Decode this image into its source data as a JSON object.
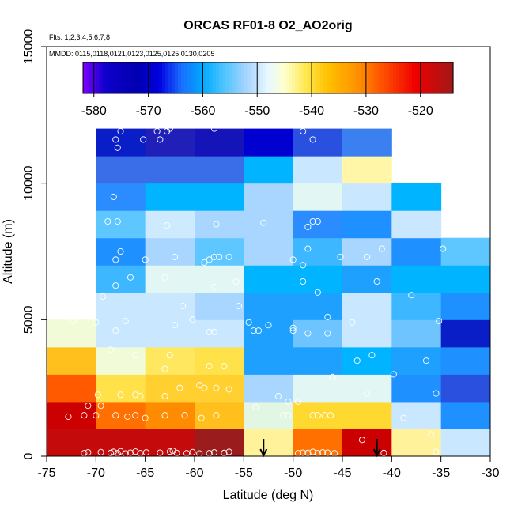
{
  "chart_data": {
    "type": "heatmap",
    "title": "ORCAS RF01-8 O2_AO2orig",
    "flights_note": "Flts: 1,2,3,4,5,6,7,8",
    "dates_note": "MMDD: 0115,0118,0121,0123,0125,0125,0130,0205",
    "xlabel": "Latitude (deg N)",
    "ylabel": "Altitude (m)",
    "xlim": [
      -75,
      -30
    ],
    "ylim": [
      0,
      15000
    ],
    "xticks": [
      -75,
      -70,
      -65,
      -60,
      -55,
      -50,
      -45,
      -40,
      -35,
      -30
    ],
    "yticks": [
      0,
      5000,
      10000,
      15000
    ],
    "colorbar": {
      "range": [
        -582,
        -514
      ],
      "ticks": [
        -580,
        -570,
        -560,
        -550,
        -540,
        -530,
        -520
      ],
      "stops": [
        [
          -582,
          "#8000ff"
        ],
        [
          -578,
          "#1000cc"
        ],
        [
          -572,
          "#0000b0"
        ],
        [
          -568,
          "#0000e0"
        ],
        [
          -564,
          "#1a6cff"
        ],
        [
          -560,
          "#00aaff"
        ],
        [
          -556,
          "#4fc4ff"
        ],
        [
          -552,
          "#a6d4ff"
        ],
        [
          -548,
          "#e8f8ff"
        ],
        [
          -545,
          "#ffffd0"
        ],
        [
          -541,
          "#ffe84d"
        ],
        [
          -537,
          "#ffc000"
        ],
        [
          -531,
          "#ff8c00"
        ],
        [
          -527,
          "#ff5000"
        ],
        [
          -521,
          "#f00000"
        ],
        [
          -514,
          "#a01818"
        ]
      ]
    },
    "cell_width_deg": 5,
    "cell_height_m": 1000,
    "cells": [
      {
        "x": -75,
        "y": 0,
        "color": "#c40a0a"
      },
      {
        "x": -75,
        "y": 1000,
        "color": "#cc0000"
      },
      {
        "x": -75,
        "y": 2000,
        "color": "#ff5a00"
      },
      {
        "x": -75,
        "y": 3000,
        "color": "#ffc01e"
      },
      {
        "x": -75,
        "y": 4000,
        "color": "#f2fbd8"
      },
      {
        "x": -70,
        "y": 0,
        "color": "#c40a0a"
      },
      {
        "x": -70,
        "y": 1000,
        "color": "#ff7000"
      },
      {
        "x": -70,
        "y": 2000,
        "color": "#ffe14a"
      },
      {
        "x": -70,
        "y": 3000,
        "color": "#f2fbd8"
      },
      {
        "x": -70,
        "y": 4000,
        "color": "#c9e8ff"
      },
      {
        "x": -70,
        "y": 5000,
        "color": "#c9e8ff"
      },
      {
        "x": -70,
        "y": 6000,
        "color": "#3db7ff"
      },
      {
        "x": -70,
        "y": 7000,
        "color": "#1e90ff"
      },
      {
        "x": -70,
        "y": 8000,
        "color": "#5ec7ff"
      },
      {
        "x": -70,
        "y": 9000,
        "color": "#2b8cff"
      },
      {
        "x": -70,
        "y": 10000,
        "color": "#3a6ee8"
      },
      {
        "x": -70,
        "y": 11000,
        "color": "#0a1ec8"
      },
      {
        "x": -65,
        "y": 0,
        "color": "#c40a0a"
      },
      {
        "x": -65,
        "y": 1000,
        "color": "#ff8c00"
      },
      {
        "x": -65,
        "y": 2000,
        "color": "#ffd030"
      },
      {
        "x": -65,
        "y": 3000,
        "color": "#ffe760"
      },
      {
        "x": -65,
        "y": 4000,
        "color": "#c9e8ff"
      },
      {
        "x": -65,
        "y": 5000,
        "color": "#c9e8ff"
      },
      {
        "x": -65,
        "y": 6000,
        "color": "#e2f6f4"
      },
      {
        "x": -65,
        "y": 7000,
        "color": "#a9d6ff"
      },
      {
        "x": -65,
        "y": 8000,
        "color": "#cdeaff"
      },
      {
        "x": -65,
        "y": 9000,
        "color": "#00b4ff"
      },
      {
        "x": -65,
        "y": 10000,
        "color": "#3a6ee8"
      },
      {
        "x": -65,
        "y": 11000,
        "color": "#2020b8"
      },
      {
        "x": -60,
        "y": 0,
        "color": "#9a1c1c"
      },
      {
        "x": -60,
        "y": 1000,
        "color": "#ffc01e"
      },
      {
        "x": -60,
        "y": 2000,
        "color": "#ffd030"
      },
      {
        "x": -60,
        "y": 3000,
        "color": "#ffe14a"
      },
      {
        "x": -60,
        "y": 4000,
        "color": "#c9e8ff"
      },
      {
        "x": -60,
        "y": 5000,
        "color": "#a9d6ff"
      },
      {
        "x": -60,
        "y": 6000,
        "color": "#e2f6f4"
      },
      {
        "x": -60,
        "y": 7000,
        "color": "#5ec7ff"
      },
      {
        "x": -60,
        "y": 8000,
        "color": "#a9d6ff"
      },
      {
        "x": -60,
        "y": 9000,
        "color": "#00b4ff"
      },
      {
        "x": -60,
        "y": 10000,
        "color": "#3a6ee8"
      },
      {
        "x": -60,
        "y": 11000,
        "color": "#1414b8"
      },
      {
        "x": -55,
        "y": 0,
        "color": "#fff29a"
      },
      {
        "x": -55,
        "y": 1000,
        "color": "#e2f6e4"
      },
      {
        "x": -55,
        "y": 2000,
        "color": "#a9d6ff"
      },
      {
        "x": -55,
        "y": 3000,
        "color": "#1ea0ff"
      },
      {
        "x": -55,
        "y": 4000,
        "color": "#1ea0ff"
      },
      {
        "x": -55,
        "y": 5000,
        "color": "#1ea0ff"
      },
      {
        "x": -55,
        "y": 6000,
        "color": "#00b4ff"
      },
      {
        "x": -55,
        "y": 7000,
        "color": "#a9d6ff"
      },
      {
        "x": -55,
        "y": 8000,
        "color": "#a9d6ff"
      },
      {
        "x": -55,
        "y": 9000,
        "color": "#a9d6ff"
      },
      {
        "x": -55,
        "y": 10000,
        "color": "#00b4ff"
      },
      {
        "x": -55,
        "y": 11000,
        "color": "#0000d0"
      },
      {
        "x": -50,
        "y": 0,
        "color": "#ff7000"
      },
      {
        "x": -50,
        "y": 1000,
        "color": "#ffd830"
      },
      {
        "x": -50,
        "y": 2000,
        "color": "#e2f6f4"
      },
      {
        "x": -50,
        "y": 3000,
        "color": "#1ea0ff"
      },
      {
        "x": -50,
        "y": 4000,
        "color": "#6ec4ff"
      },
      {
        "x": -50,
        "y": 5000,
        "color": "#1ea0ff"
      },
      {
        "x": -50,
        "y": 6000,
        "color": "#00b4ff"
      },
      {
        "x": -50,
        "y": 7000,
        "color": "#3db7ff"
      },
      {
        "x": -50,
        "y": 8000,
        "color": "#2b8cff"
      },
      {
        "x": -50,
        "y": 9000,
        "color": "#e2f6f4"
      },
      {
        "x": -50,
        "y": 10000,
        "color": "#c9e8ff"
      },
      {
        "x": -50,
        "y": 11000,
        "color": "#2a50e0"
      },
      {
        "x": -45,
        "y": 0,
        "color": "#cc0000"
      },
      {
        "x": -45,
        "y": 1000,
        "color": "#ffd830"
      },
      {
        "x": -45,
        "y": 2000,
        "color": "#e2f6f4"
      },
      {
        "x": -45,
        "y": 3000,
        "color": "#00b4ff"
      },
      {
        "x": -45,
        "y": 4000,
        "color": "#c9e8ff"
      },
      {
        "x": -45,
        "y": 5000,
        "color": "#c9e8ff"
      },
      {
        "x": -45,
        "y": 6000,
        "color": "#1ea0ff"
      },
      {
        "x": -45,
        "y": 7000,
        "color": "#a9d6ff"
      },
      {
        "x": -45,
        "y": 8000,
        "color": "#1e90ff"
      },
      {
        "x": -45,
        "y": 9000,
        "color": "#c9e8ff"
      },
      {
        "x": -45,
        "y": 10000,
        "color": "#fff6a8"
      },
      {
        "x": -45,
        "y": 11000,
        "color": "#3a80f0"
      },
      {
        "x": -40,
        "y": 0,
        "color": "#fff29a"
      },
      {
        "x": -40,
        "y": 1000,
        "color": "#c9e8ff"
      },
      {
        "x": -40,
        "y": 2000,
        "color": "#1e90ff"
      },
      {
        "x": -40,
        "y": 3000,
        "color": "#1ea0ff"
      },
      {
        "x": -40,
        "y": 4000,
        "color": "#6ec4ff"
      },
      {
        "x": -40,
        "y": 5000,
        "color": "#3db7ff"
      },
      {
        "x": -40,
        "y": 6000,
        "color": "#00b4ff"
      },
      {
        "x": -40,
        "y": 7000,
        "color": "#1e90ff"
      },
      {
        "x": -40,
        "y": 8000,
        "color": "#c9e8ff"
      },
      {
        "x": -40,
        "y": 9000,
        "color": "#00b4ff"
      },
      {
        "x": -35,
        "y": 0,
        "color": "#c9e8ff"
      },
      {
        "x": -35,
        "y": 1000,
        "color": "#1e90ff"
      },
      {
        "x": -35,
        "y": 2000,
        "color": "#2a50e0"
      },
      {
        "x": -35,
        "y": 3000,
        "color": "#1e90ff"
      },
      {
        "x": -35,
        "y": 4000,
        "color": "#0a1ec8"
      },
      {
        "x": -35,
        "y": 5000,
        "color": "#1e90ff"
      },
      {
        "x": -35,
        "y": 6000,
        "color": "#00b4ff"
      },
      {
        "x": -35,
        "y": 7000,
        "color": "#5ec7ff"
      }
    ],
    "points": [
      [
        -71.2,
        110
      ],
      [
        -70.8,
        140
      ],
      [
        -69.5,
        150
      ],
      [
        -68.5,
        120
      ],
      [
        -68.2,
        160
      ],
      [
        -67.8,
        110
      ],
      [
        -67.5,
        180
      ],
      [
        -67.0,
        100
      ],
      [
        -66.5,
        130
      ],
      [
        -66.0,
        170
      ],
      [
        -65.5,
        110
      ],
      [
        -64.9,
        140
      ],
      [
        -63.5,
        130
      ],
      [
        -62.5,
        170
      ],
      [
        -62.2,
        200
      ],
      [
        -61.8,
        120
      ],
      [
        -60.8,
        110
      ],
      [
        -60.2,
        150
      ],
      [
        -59.5,
        100
      ],
      [
        -58.5,
        110
      ],
      [
        -58.0,
        140
      ],
      [
        -57.0,
        120
      ],
      [
        -56.5,
        160
      ],
      [
        -49.5,
        110
      ],
      [
        -49.0,
        130
      ],
      [
        -48.5,
        120
      ],
      [
        -48.0,
        160
      ],
      [
        -47.5,
        110
      ],
      [
        -47.0,
        140
      ],
      [
        -46.5,
        130
      ],
      [
        -45.8,
        110
      ],
      [
        -40.8,
        120
      ],
      [
        -35.5,
        160
      ],
      [
        -72.8,
        1450
      ],
      [
        -71.2,
        1500
      ],
      [
        -70.8,
        1850
      ],
      [
        -70.0,
        1500
      ],
      [
        -69.5,
        1850
      ],
      [
        -68.0,
        1500
      ],
      [
        -66.8,
        1450
      ],
      [
        -66.0,
        1500
      ],
      [
        -65.0,
        1400
      ],
      [
        -63.0,
        1500
      ],
      [
        -61.0,
        1500
      ],
      [
        -59.3,
        1400
      ],
      [
        -57.8,
        1500
      ],
      [
        -53.8,
        1800
      ],
      [
        -51.0,
        1500
      ],
      [
        -50.5,
        1500
      ],
      [
        -48.0,
        1500
      ],
      [
        -47.5,
        1500
      ],
      [
        -46.8,
        1500
      ],
      [
        -46.2,
        1500
      ],
      [
        -38.8,
        1400
      ],
      [
        -36.0,
        800
      ],
      [
        -43.0,
        600
      ],
      [
        -69.8,
        2250
      ],
      [
        -67.5,
        2250
      ],
      [
        -66.0,
        2250
      ],
      [
        -65.5,
        2200
      ],
      [
        -63.0,
        2200
      ],
      [
        -61.5,
        2500
      ],
      [
        -59.5,
        2600
      ],
      [
        -59.0,
        2500
      ],
      [
        -57.8,
        2500
      ],
      [
        -56.5,
        2450
      ],
      [
        -51.5,
        2200
      ],
      [
        -50.5,
        2000
      ],
      [
        -49.5,
        2000
      ],
      [
        -46.0,
        2900
      ],
      [
        -43.5,
        3500
      ],
      [
        -42.5,
        2300
      ],
      [
        -39.8,
        3000
      ],
      [
        -36.5,
        3500
      ],
      [
        -35.5,
        2300
      ],
      [
        -68.5,
        3900
      ],
      [
        -66.0,
        3700
      ],
      [
        -63.0,
        3200
      ],
      [
        -62.5,
        3700
      ],
      [
        -58.5,
        3300
      ],
      [
        -57.0,
        3300
      ],
      [
        -53.5,
        4600
      ],
      [
        -52.5,
        4800
      ],
      [
        -50.0,
        4600
      ],
      [
        -48.5,
        4500
      ],
      [
        -46.5,
        4500
      ],
      [
        -44.0,
        4900
      ],
      [
        -42.0,
        3700
      ],
      [
        -72.3,
        4950
      ],
      [
        -70.0,
        4900
      ],
      [
        -68.0,
        4600
      ],
      [
        -67.0,
        4950
      ],
      [
        -62.0,
        4800
      ],
      [
        -61.2,
        5500
      ],
      [
        -60.2,
        5000
      ],
      [
        -58.5,
        4550
      ],
      [
        -58.0,
        4550
      ],
      [
        -55.5,
        5500
      ],
      [
        -54.5,
        4900
      ],
      [
        -54.0,
        4600
      ],
      [
        -50.0,
        4700
      ],
      [
        -46.5,
        5100
      ],
      [
        -38.0,
        5900
      ],
      [
        -35.2,
        4950
      ],
      [
        -69.3,
        5850
      ],
      [
        -68.0,
        6250
      ],
      [
        -66.5,
        6550
      ],
      [
        -63.0,
        6550
      ],
      [
        -58.0,
        6200
      ],
      [
        -55.8,
        6400
      ],
      [
        -49.0,
        6400
      ],
      [
        -47.5,
        6000
      ],
      [
        -41.5,
        6400
      ],
      [
        -68.0,
        7200
      ],
      [
        -67.5,
        7500
      ],
      [
        -65.0,
        7200
      ],
      [
        -62.0,
        7300
      ],
      [
        -59.0,
        7100
      ],
      [
        -58.5,
        7200
      ],
      [
        -58.0,
        7300
      ],
      [
        -57.5,
        7300
      ],
      [
        -56.5,
        7300
      ],
      [
        -50.0,
        7200
      ],
      [
        -49.0,
        7000
      ],
      [
        -48.5,
        7600
      ],
      [
        -45.2,
        7300
      ],
      [
        -41.0,
        7600
      ],
      [
        -42.5,
        7300
      ],
      [
        -34.8,
        7600
      ],
      [
        -68.8,
        8600
      ],
      [
        -67.8,
        8600
      ],
      [
        -62.8,
        8450
      ],
      [
        -57.8,
        8500
      ],
      [
        -53.0,
        8550
      ],
      [
        -48.5,
        8400
      ],
      [
        -48.0,
        8600
      ],
      [
        -47.5,
        8600
      ],
      [
        -68.2,
        9500
      ],
      [
        -68.0,
        11600
      ],
      [
        -67.8,
        11300
      ],
      [
        -67.5,
        11900
      ],
      [
        -65.2,
        11600
      ],
      [
        -63.8,
        11900
      ],
      [
        -63.5,
        11600
      ],
      [
        -62.8,
        11900
      ],
      [
        -62.5,
        12000
      ],
      [
        -58.0,
        12000
      ],
      [
        -49.0,
        11900
      ],
      [
        -48.0,
        11600
      ]
    ],
    "arrows": [
      -53.0,
      -41.5
    ]
  }
}
